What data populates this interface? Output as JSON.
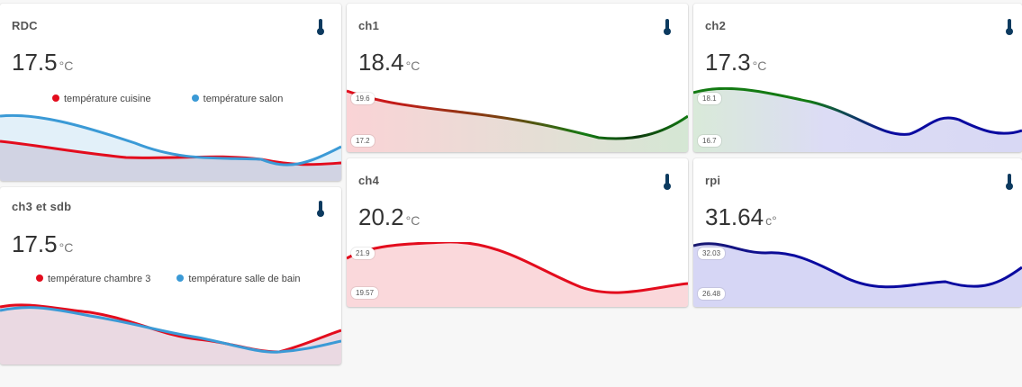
{
  "colors": {
    "red": "#e30c1d",
    "blue": "#3b9ad6",
    "green": "#137a13",
    "darkblue": "#0a0aa0",
    "navy": "#0c3a5f",
    "thermo": "#0c3a5f"
  },
  "cards": {
    "rdc": {
      "title": "RDC",
      "value": "17.5",
      "unit": "°C",
      "legend": [
        {
          "label": "température cuisine",
          "color": "#e30c1d"
        },
        {
          "label": "température salon",
          "color": "#3b9ad6"
        }
      ]
    },
    "ch1": {
      "title": "ch1",
      "value": "18.4",
      "unit": "°C",
      "max": "19.6",
      "min": "17.2"
    },
    "ch2": {
      "title": "ch2",
      "value": "17.3",
      "unit": "°C",
      "max": "18.1",
      "min": "16.7"
    },
    "ch3": {
      "title": "ch3 et sdb",
      "value": "17.5",
      "unit": "°C",
      "legend": [
        {
          "label": "température chambre 3",
          "color": "#e30c1d"
        },
        {
          "label": "température salle de bain",
          "color": "#3b9ad6"
        }
      ]
    },
    "ch4": {
      "title": "ch4",
      "value": "20.2",
      "unit": "°C",
      "max": "21.9",
      "min": "19.57"
    },
    "rpi": {
      "title": "rpi",
      "value": "31.64",
      "unit": "c°",
      "max": "32.03",
      "min": "26.48"
    }
  }
}
